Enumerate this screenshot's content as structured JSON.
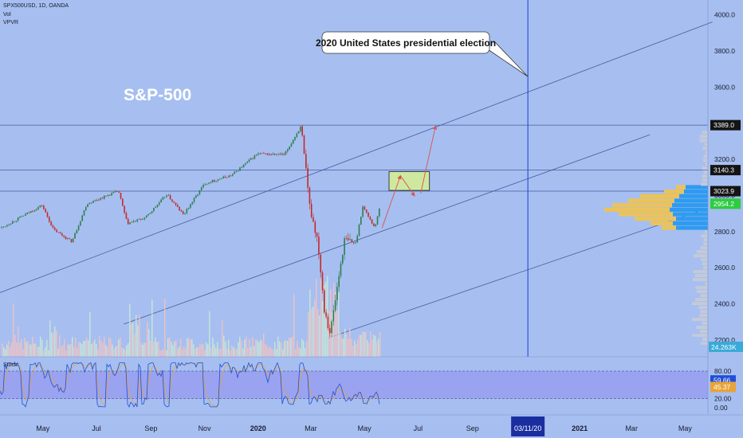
{
  "header": {
    "symbol_line": "SPX500USD, 1D, OANDA",
    "indicator_vol": "Vol",
    "indicator_vpvr": "VPVR",
    "stoch_label": "Stoch"
  },
  "annotations": {
    "chart_title": "S&P-500",
    "callout": "2020 United States presidential election"
  },
  "colors": {
    "background": "#a6bff0",
    "candle_up": "#2e7d4f",
    "candle_down": "#c62828",
    "vol_up": "#c9e8d6",
    "vol_down": "#f3c2c2",
    "line": "#4a5aa0",
    "vline": "#1f3fd6",
    "box_fill": "#cfe8a0",
    "vp_gold": "#ebc35a",
    "vp_blue": "#2f9bf0",
    "stoch_band": "#9aa3f0",
    "stoch_k": "#1f4fd8",
    "stoch_d": "#e8a33a"
  },
  "axes": {
    "x_ticks": [
      {
        "label": "May",
        "date": "2019-05-01"
      },
      {
        "label": "Jul",
        "date": "2019-07-01"
      },
      {
        "label": "Sep",
        "date": "2019-09-01"
      },
      {
        "label": "Nov",
        "date": "2019-11-01"
      },
      {
        "label": "2020",
        "date": "2020-01-01",
        "bold": true
      },
      {
        "label": "Mar",
        "date": "2020-03-01"
      },
      {
        "label": "May",
        "date": "2020-05-01"
      },
      {
        "label": "Jul",
        "date": "2020-07-01"
      },
      {
        "label": "Sep",
        "date": "2020-09-01"
      },
      {
        "label": "2021",
        "date": "2021-01-01",
        "bold": true
      },
      {
        "label": "Mar",
        "date": "2021-03-01"
      },
      {
        "label": "May",
        "date": "2021-05-01"
      }
    ],
    "crosshair_date_label": "03/11/20",
    "crosshair_date": "2020-11-03",
    "price_ticks": [
      "4000.0",
      "3800.0",
      "3600.0",
      "3400.0",
      "3200.0",
      "3000.0",
      "2800.0",
      "2600.0",
      "2400.0",
      "2200.0"
    ],
    "price_tick_values": [
      4000,
      3800,
      3600,
      3400,
      3200,
      3000,
      2800,
      2600,
      2400,
      2200
    ],
    "stoch_ticks": [
      "80.00",
      "20.00",
      "0.00"
    ],
    "stoch_tick_values": [
      80,
      20,
      0
    ]
  },
  "price_labels": [
    {
      "text": "3389.0",
      "value": 3389,
      "style": "dark"
    },
    {
      "text": "3140.3",
      "value": 3140.3,
      "style": "dark"
    },
    {
      "text": "3023.9",
      "value": 3023.9,
      "style": "dark"
    },
    {
      "text": "2954.2",
      "value": 2954.2,
      "style": "green"
    }
  ],
  "volume_label": "24.263K",
  "stoch_labels": [
    {
      "text": "59.66",
      "value": 59.66,
      "style": "blue"
    },
    {
      "text": "45.37",
      "value": 45.37,
      "style": "orange"
    }
  ],
  "chart_data": {
    "type": "candlestick",
    "series": [
      {
        "date": "2019-03-15",
        "close": 2822
      },
      {
        "date": "2019-04-01",
        "close": 2867
      },
      {
        "date": "2019-04-30",
        "close": 2946
      },
      {
        "date": "2019-05-13",
        "close": 2811
      },
      {
        "date": "2019-06-03",
        "close": 2744
      },
      {
        "date": "2019-06-20",
        "close": 2954
      },
      {
        "date": "2019-07-26",
        "close": 3025
      },
      {
        "date": "2019-08-05",
        "close": 2844
      },
      {
        "date": "2019-08-26",
        "close": 2878
      },
      {
        "date": "2019-09-19",
        "close": 3006
      },
      {
        "date": "2019-10-08",
        "close": 2893
      },
      {
        "date": "2019-11-01",
        "close": 3066
      },
      {
        "date": "2019-12-02",
        "close": 3113
      },
      {
        "date": "2019-12-31",
        "close": 3230
      },
      {
        "date": "2020-01-31",
        "close": 3225
      },
      {
        "date": "2020-02-19",
        "close": 3386
      },
      {
        "date": "2020-02-28",
        "close": 2954
      },
      {
        "date": "2020-03-09",
        "close": 2747
      },
      {
        "date": "2020-03-16",
        "close": 2386
      },
      {
        "date": "2020-03-23",
        "close": 2237
      },
      {
        "date": "2020-04-08",
        "close": 2750
      },
      {
        "date": "2020-04-21",
        "close": 2736
      },
      {
        "date": "2020-04-29",
        "close": 2939
      },
      {
        "date": "2020-05-13",
        "close": 2820
      },
      {
        "date": "2020-05-19",
        "close": 2954
      }
    ],
    "horizontal_levels": [
      3389,
      3140.3,
      3023.9
    ],
    "vertical_marker_date": "2020-11-03",
    "projection_box": {
      "date_from": "2020-05-29",
      "date_to": "2020-07-14",
      "price_low": 3028,
      "price_high": 3132
    },
    "projection_arrows": [
      {
        "date_from": "2020-05-21",
        "price_from": 2820,
        "date_to": "2020-06-11",
        "price_to": 3110
      },
      {
        "date_from": "2020-06-11",
        "price_from": 3110,
        "date_to": "2020-06-27",
        "price_to": 2997
      },
      {
        "date_from": "2020-07-04",
        "price_from": 3012,
        "date_to": "2020-07-21",
        "price_to": 3385
      }
    ],
    "trend_lines": [
      {
        "date_from": "2019-03-01",
        "price_from": 2440,
        "date_to": "2021-06-01",
        "price_to": 3960
      },
      {
        "date_from": "2019-08-01",
        "price_from": 2288,
        "date_to": "2021-03-22",
        "price_to": 3336
      },
      {
        "date_from": "2020-03-20",
        "price_from": 2210,
        "date_to": "2021-05-15",
        "price_to": 2910
      }
    ],
    "stoch_bands": {
      "upper": 80,
      "lower": 20
    },
    "y_range": [
      2160,
      4100
    ]
  }
}
